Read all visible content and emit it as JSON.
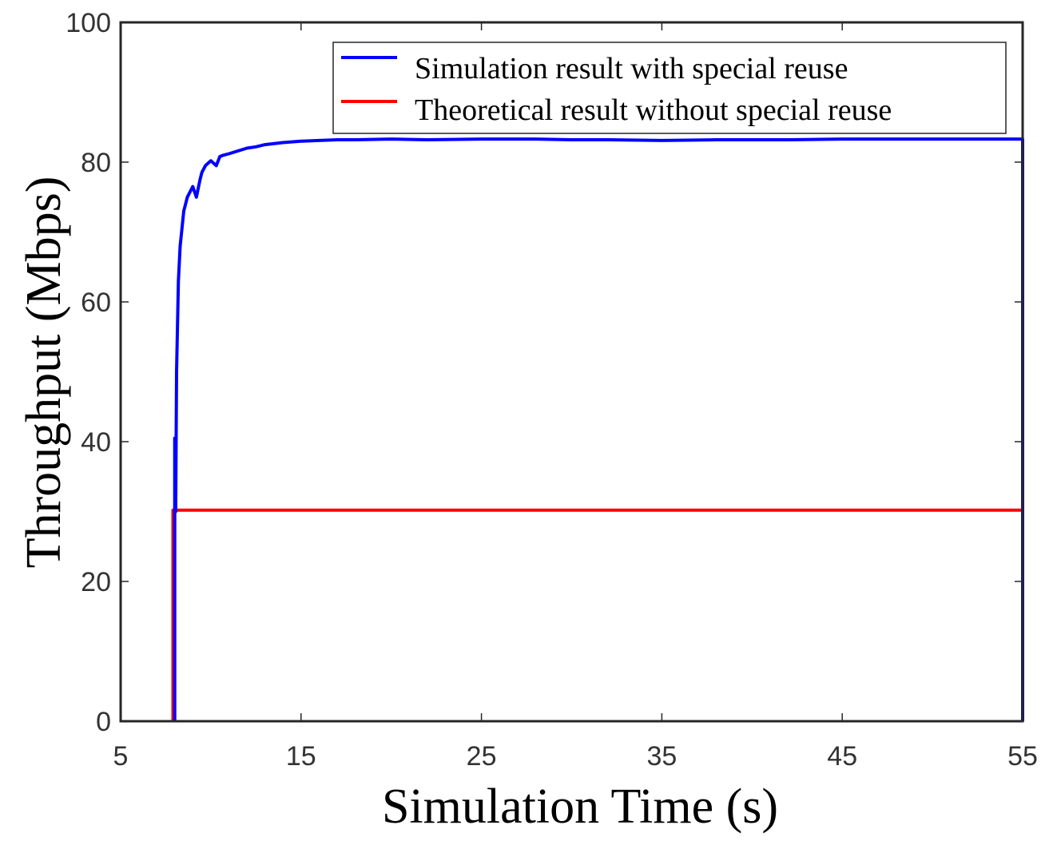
{
  "chart_data": {
    "type": "line",
    "title": "",
    "xlabel": "Simulation Time (s)",
    "ylabel": "Throughput (Mbps)",
    "xlim": [
      5,
      55
    ],
    "ylim": [
      0,
      100
    ],
    "xticks": [
      5,
      15,
      25,
      35,
      45,
      55
    ],
    "yticks": [
      0,
      20,
      40,
      60,
      80,
      100
    ],
    "xtick_labels": [
      "5",
      "15",
      "25",
      "35",
      "45",
      "55"
    ],
    "ytick_labels": [
      "0",
      "20",
      "40",
      "60",
      "80",
      "100"
    ],
    "grid": false,
    "legend_position": "top-right",
    "series": [
      {
        "name": "Simulation result with special reuse",
        "color": "#0000ff",
        "x": [
          8.0,
          8.0,
          8.0,
          8.05,
          8.1,
          8.2,
          8.3,
          8.5,
          8.7,
          9.0,
          9.2,
          9.4,
          9.5,
          9.7,
          10.0,
          10.3,
          10.5,
          10.7,
          11.0,
          11.5,
          12.0,
          12.5,
          13.0,
          14.0,
          15.0,
          16.0,
          17.0,
          18.0,
          20.0,
          22.0,
          25.0,
          28.0,
          30.0,
          32.0,
          35.0,
          38.0,
          40.0,
          42.0,
          45.0,
          48.0,
          50.0,
          52.0,
          54.9,
          55.0,
          55.0
        ],
        "values": [
          0,
          12,
          40.5,
          30,
          50,
          63,
          68,
          73,
          75,
          76.5,
          75,
          77.5,
          78.5,
          79.5,
          80.2,
          79.5,
          80.8,
          81,
          81.2,
          81.6,
          82,
          82.2,
          82.5,
          82.8,
          83,
          83.1,
          83.2,
          83.2,
          83.3,
          83.2,
          83.3,
          83.3,
          83.2,
          83.2,
          83.1,
          83.2,
          83.2,
          83.2,
          83.3,
          83.3,
          83.3,
          83.3,
          83.3,
          83.3,
          0
        ]
      },
      {
        "name": "Theoretical result without special reuse",
        "color": "#ff0000",
        "x": [
          7.9,
          7.9,
          55.0,
          55.0
        ],
        "values": [
          0,
          30.2,
          30.2,
          0
        ]
      }
    ]
  }
}
